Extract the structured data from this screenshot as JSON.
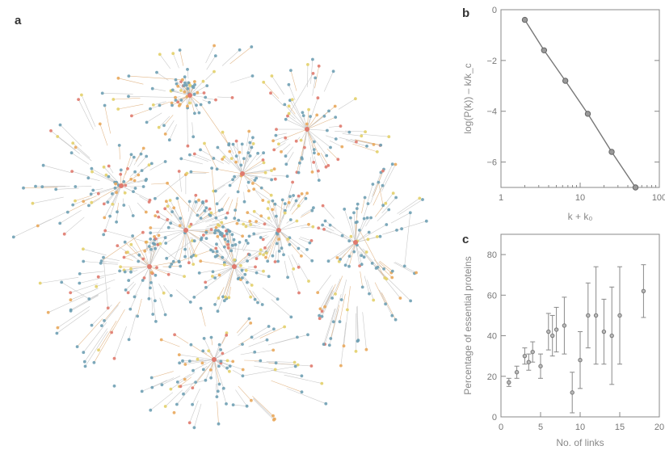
{
  "panels": {
    "a": {
      "label": "a"
    },
    "b": {
      "label": "b"
    },
    "c": {
      "label": "c"
    }
  },
  "network": {
    "node_colors": {
      "essential_lethal": "#e07a6e",
      "non_lethal": "#6fa0b4",
      "slow_growth": "#e9a85c",
      "unknown": "#e3d06a"
    }
  },
  "chart_data": [
    {
      "panel": "b",
      "type": "line",
      "title": "",
      "xlabel": "k + k₀",
      "ylabel": "log(P(k)) – k/k_c",
      "xscale": "log",
      "xlim": [
        1,
        100
      ],
      "ylim": [
        -7,
        0
      ],
      "xticks": [
        1,
        10,
        100
      ],
      "xtick_labels": [
        "1",
        "10",
        "100"
      ],
      "yticks": [
        0,
        -2,
        -4,
        -6
      ],
      "ytick_labels": [
        "0",
        "−2",
        "−4",
        "−6"
      ],
      "grid": false,
      "series": [
        {
          "x": [
            2,
            3.5,
            6.5,
            12.5,
            25,
            50
          ],
          "y": [
            -0.4,
            -1.6,
            -2.8,
            -4.1,
            -5.6,
            -7.0
          ]
        }
      ]
    },
    {
      "panel": "c",
      "type": "scatter",
      "title": "",
      "xlabel": "No. of links",
      "ylabel": "Percentage of essential proteins",
      "xlim": [
        0,
        20
      ],
      "ylim": [
        0,
        90
      ],
      "xticks": [
        0,
        5,
        10,
        15,
        20
      ],
      "xtick_labels": [
        "0",
        "5",
        "10",
        "15",
        "20"
      ],
      "yticks": [
        0,
        20,
        40,
        60,
        80
      ],
      "ytick_labels": [
        "0",
        "20",
        "40",
        "60",
        "80"
      ],
      "grid": false,
      "series": [
        {
          "x": [
            1,
            2,
            3,
            3.5,
            4,
            5,
            6,
            6.5,
            7,
            8,
            9,
            10,
            11,
            12,
            13,
            14,
            15,
            18
          ],
          "y": [
            17,
            22,
            30,
            27,
            32,
            25,
            42,
            40,
            43,
            45,
            12,
            28,
            50,
            50,
            42,
            40,
            50,
            62
          ],
          "yerr": [
            2,
            3,
            4,
            4,
            5,
            6,
            9,
            10,
            11,
            14,
            10,
            14,
            16,
            24,
            16,
            24,
            24,
            13
          ]
        }
      ]
    }
  ]
}
